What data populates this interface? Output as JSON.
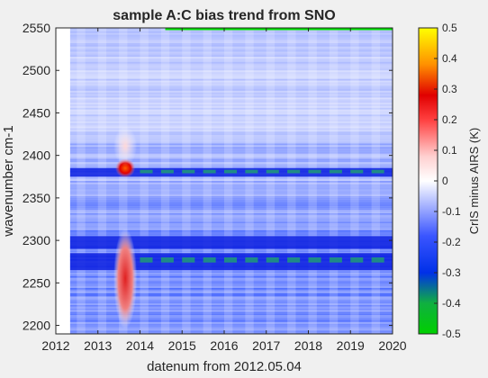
{
  "chart_data": {
    "type": "heatmap",
    "title": "sample A:C bias trend from SNO",
    "xlabel": "datenum from 2012.05.04",
    "ylabel": "wavenumber cm-1",
    "xlim": [
      2012,
      2020
    ],
    "ylim": [
      2190,
      2550
    ],
    "xticks": [
      2012,
      2013,
      2014,
      2015,
      2016,
      2017,
      2018,
      2019,
      2020
    ],
    "xtick_labels": [
      "2012",
      "2013",
      "2014",
      "2015",
      "2016",
      "2017",
      "2018",
      "2019",
      "2020"
    ],
    "yticks": [
      2200,
      2250,
      2300,
      2350,
      2400,
      2450,
      2500,
      2550
    ],
    "ytick_labels": [
      "2200",
      "2250",
      "2300",
      "2350",
      "2400",
      "2450",
      "2500",
      "2550"
    ],
    "data_x_range": [
      2012.34,
      2020
    ],
    "colorbar": {
      "label": "CrIS minus AIRS (K)",
      "range": [
        -0.5,
        0.5
      ],
      "ticks": [
        0.5,
        0.4,
        0.3,
        0.2,
        0.1,
        0,
        -0.1,
        -0.2,
        -0.3,
        -0.4,
        -0.5
      ],
      "tick_labels": [
        "0.5",
        "0.4",
        "0.3",
        "0.2",
        "0.1",
        "0",
        "-0.1",
        "-0.2",
        "-0.3",
        "-0.4",
        "-0.5"
      ],
      "colormap": [
        "#00d000",
        "#2040ff",
        "#ffffff",
        "#ff2020",
        "#ffff00"
      ]
    },
    "features": [
      {
        "wavenumber_range": [
          2375,
          2385
        ],
        "value": -0.35,
        "note": "strong negative band"
      },
      {
        "wavenumber_range": [
          2290,
          2305
        ],
        "value": -0.3
      },
      {
        "wavenumber_range": [
          2265,
          2285
        ],
        "value": -0.32
      },
      {
        "time": 2013.65,
        "wavenumber_range": [
          2200,
          2310
        ],
        "value": 0.15
      },
      {
        "time": 2013.65,
        "wavenumber_range": [
          2378,
          2392
        ],
        "value": 0.25
      },
      {
        "time": 2013.65,
        "wavenumber_range": [
          2392,
          2430
        ],
        "value": 0.1
      }
    ]
  }
}
